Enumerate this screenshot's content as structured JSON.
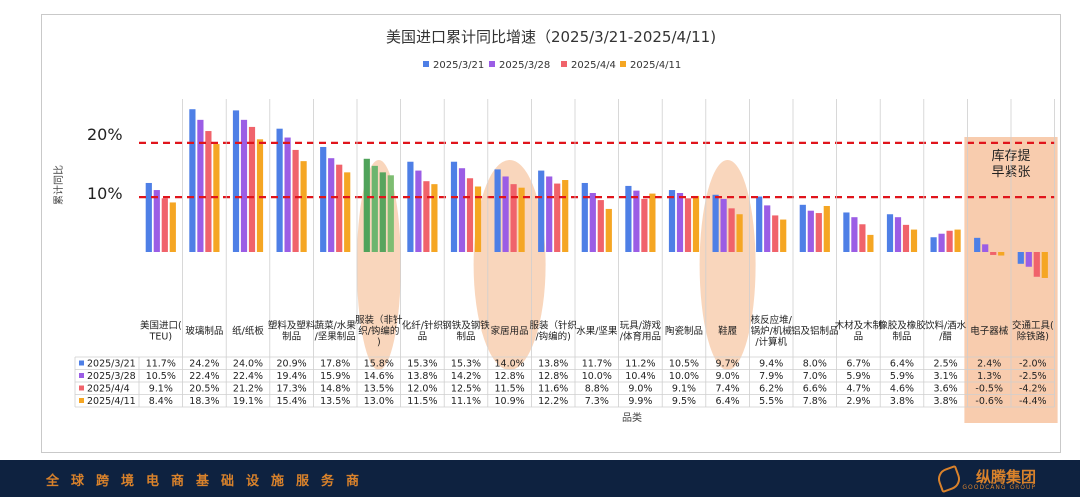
{
  "chart_data": {
    "type": "bar",
    "title": "美国进口累计同比增速（2025/3/21-2025/4/11)",
    "ylabel": "累计同比",
    "xlabel": "品类",
    "ylim": [
      -5,
      25
    ],
    "y_ticks": [
      "20%",
      "10%"
    ],
    "reference_lines": [
      18.5,
      9.3
    ],
    "annotation": "库存提早紧张",
    "categories": [
      "美国进口(TEU)",
      "玻璃制品",
      "纸/纸板",
      "塑料及塑料制品",
      "蔬菜/水果/坚果制品",
      "服装（非针织/钩编的)",
      "化纤/针织品",
      "钢铁及钢铁制品",
      "家居用品",
      "服装（针织/钩编的)",
      "水果/坚果",
      "玩具/游戏/体育用品",
      "陶瓷制品",
      "鞋履",
      "核反应堆/锅炉/机械/计算机",
      "铝及铝制品",
      "木材及木制品",
      "橡胶及橡胶制品",
      "饮料/酒水/醋",
      "电子器械",
      "交通工具(除铁路)"
    ],
    "series": [
      {
        "name": "2025/3/21",
        "color": "#4e7fe6",
        "values": [
          11.7,
          24.2,
          24.0,
          20.9,
          17.8,
          15.8,
          15.3,
          15.3,
          14.0,
          13.8,
          11.7,
          11.2,
          10.5,
          9.7,
          9.4,
          8.0,
          6.7,
          6.4,
          2.5,
          2.4,
          -2.0
        ]
      },
      {
        "name": "2025/3/28",
        "color": "#9b5de5",
        "values": [
          10.5,
          22.4,
          22.4,
          19.4,
          15.9,
          14.6,
          13.8,
          14.2,
          12.8,
          12.8,
          10.0,
          10.4,
          10.0,
          9.0,
          7.9,
          7.0,
          5.9,
          5.9,
          3.1,
          1.3,
          -2.5
        ]
      },
      {
        "name": "2025/4/4",
        "color": "#f0636b",
        "values": [
          9.1,
          20.5,
          21.2,
          17.3,
          14.8,
          13.5,
          12.0,
          12.5,
          11.5,
          11.6,
          8.8,
          9.0,
          9.1,
          7.4,
          6.2,
          6.6,
          4.7,
          4.6,
          3.6,
          -0.5,
          -4.2
        ]
      },
      {
        "name": "2025/4/11",
        "color": "#f5a623",
        "values": [
          8.4,
          18.3,
          19.1,
          15.4,
          13.5,
          13.0,
          11.5,
          11.1,
          10.9,
          12.2,
          7.3,
          9.9,
          9.5,
          6.4,
          5.5,
          7.8,
          2.9,
          3.8,
          3.8,
          -0.6,
          -4.4
        ]
      }
    ],
    "table_values": [
      [
        "11.7%",
        "24.2%",
        "24.0%",
        "20.9%",
        "17.8%",
        "15.8%",
        "15.3%",
        "15.3%",
        "14.0%",
        "13.8%",
        "11.7%",
        "11.2%",
        "10.5%",
        "9.7%",
        "9.4%",
        "8.0%",
        "6.7%",
        "6.4%",
        "2.5%",
        "2.4%",
        "-2.0%"
      ],
      [
        "10.5%",
        "22.4%",
        "22.4%",
        "19.4%",
        "15.9%",
        "14.6%",
        "13.8%",
        "14.2%",
        "12.8%",
        "12.8%",
        "10.0%",
        "10.4%",
        "10.0%",
        "9.0%",
        "7.9%",
        "7.0%",
        "5.9%",
        "5.9%",
        "3.1%",
        "1.3%",
        "-2.5%"
      ],
      [
        "9.1%",
        "20.5%",
        "21.2%",
        "17.3%",
        "14.8%",
        "13.5%",
        "12.0%",
        "12.5%",
        "11.5%",
        "11.6%",
        "8.8%",
        "9.0%",
        "9.1%",
        "7.4%",
        "6.2%",
        "6.6%",
        "4.7%",
        "4.6%",
        "3.6%",
        "-0.5%",
        "-4.2%"
      ],
      [
        "8.4%",
        "18.3%",
        "19.1%",
        "15.4%",
        "13.5%",
        "13.0%",
        "11.5%",
        "11.1%",
        "10.9%",
        "12.2%",
        "7.3%",
        "9.9%",
        "9.5%",
        "6.4%",
        "5.5%",
        "7.8%",
        "2.9%",
        "3.8%",
        "3.8%",
        "-0.6%",
        "-4.4%"
      ]
    ]
  },
  "footer": {
    "slogan": "全球跨境电商基础设施服务商",
    "logo": "纵腾集团",
    "logo_sub": "GOODCANG GROUP"
  }
}
